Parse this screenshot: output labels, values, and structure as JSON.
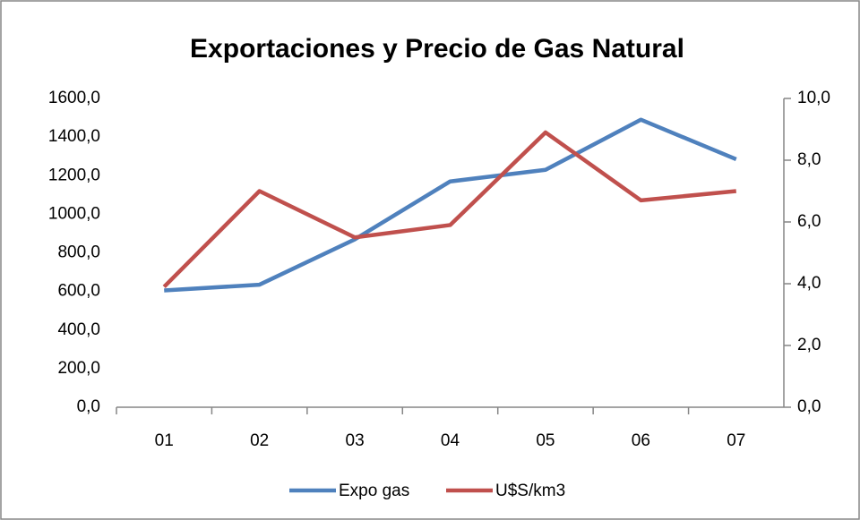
{
  "chart_data": {
    "type": "line",
    "title": "Exportaciones y Precio de Gas Natural",
    "categories": [
      "01",
      "02",
      "03",
      "04",
      "05",
      "06",
      "07"
    ],
    "series": [
      {
        "name": "Expo gas",
        "color": "#4f81bd",
        "values": [
          605,
          635,
          870,
          1170,
          1230,
          1490,
          1285
        ]
      },
      {
        "name": "U$S/km3",
        "color": "#c0504d",
        "axis": "y2",
        "values": [
          3.9,
          7.0,
          5.5,
          5.9,
          8.9,
          6.7,
          7.0
        ]
      }
    ],
    "ylim": [
      0,
      1600
    ],
    "yticks": [
      {
        "value": 0,
        "label": "0,0"
      },
      {
        "value": 200,
        "label": "200,0"
      },
      {
        "value": 400,
        "label": "400,0"
      },
      {
        "value": 600,
        "label": "600,0"
      },
      {
        "value": 800,
        "label": "800,0"
      },
      {
        "value": 1000,
        "label": "1000,0"
      },
      {
        "value": 1200,
        "label": "1200,0"
      },
      {
        "value": 1400,
        "label": "1400,0"
      },
      {
        "value": 1600,
        "label": "1600,0"
      }
    ],
    "y2lim": [
      0,
      10
    ],
    "y2ticks": [
      {
        "value": 0,
        "label": "0,0"
      },
      {
        "value": 2,
        "label": "2,0"
      },
      {
        "value": 4,
        "label": "4,0"
      },
      {
        "value": 6,
        "label": "6,0"
      },
      {
        "value": 8,
        "label": "8,0"
      },
      {
        "value": 10,
        "label": "10,0"
      }
    ],
    "grid": false,
    "legend": "bottom"
  }
}
